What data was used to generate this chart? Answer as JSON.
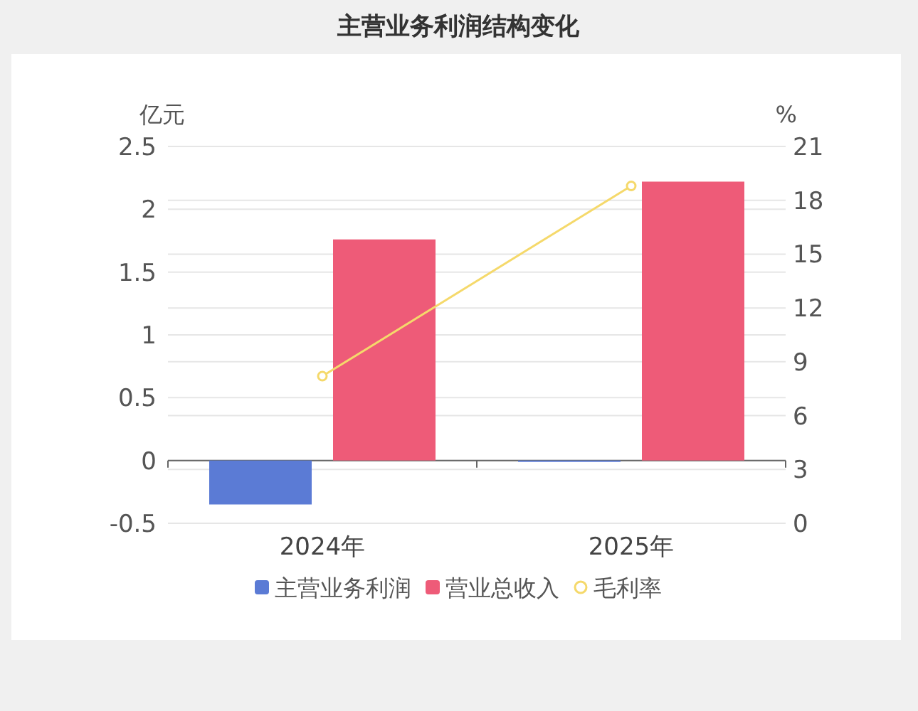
{
  "chart_data": {
    "type": "bar",
    "title": "主营业务利润结构变化",
    "ylabel": "亿元",
    "y2label": "%",
    "categories": [
      "2024年",
      "2025年"
    ],
    "series": [
      {
        "name": "主营业务利润",
        "color": "#5b7bd5",
        "values": [
          -0.35,
          -0.01
        ]
      },
      {
        "name": "营业总收入",
        "color": "#ee5b78",
        "values": [
          1.76,
          2.22
        ]
      },
      {
        "name": "毛利率",
        "type": "line",
        "axis": "y2",
        "color": "#f5d96b",
        "values": [
          8.2,
          18.8
        ]
      }
    ],
    "ylim": [
      -0.5,
      2.5
    ],
    "yticks": [
      -0.5,
      0,
      0.5,
      1,
      1.5,
      2,
      2.5
    ],
    "y2lim": [
      0,
      21
    ],
    "y2ticks": [
      0,
      3,
      6,
      9,
      12,
      15,
      18,
      21
    ],
    "grid": true,
    "legend": "bottom",
    "marker": "circle"
  }
}
